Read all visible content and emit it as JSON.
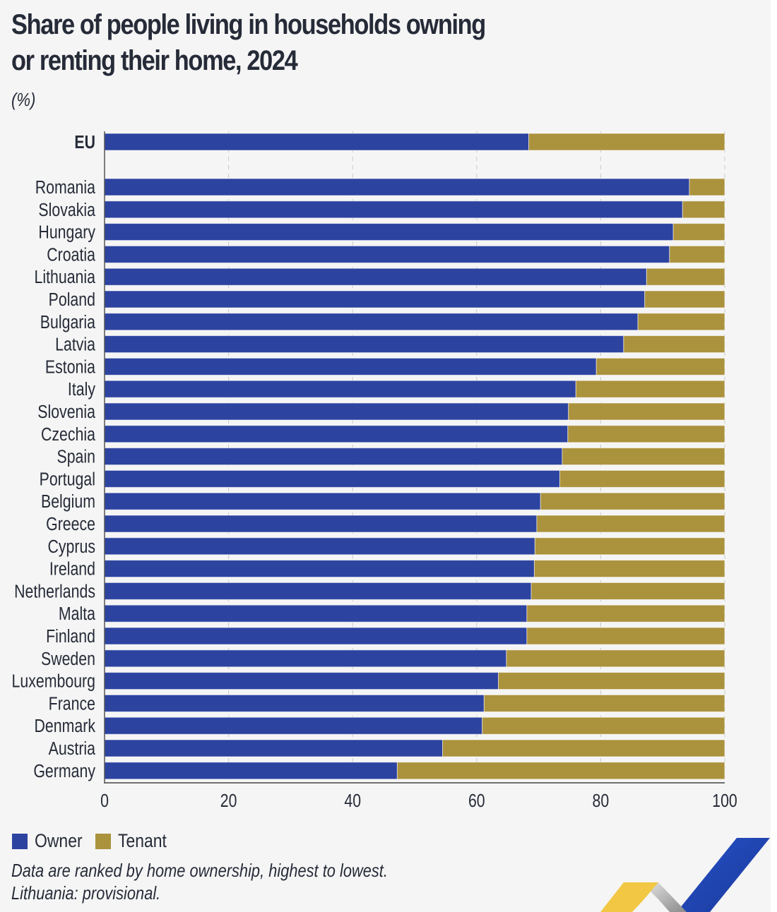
{
  "colors": {
    "owner": "#2d43a0",
    "tenant": "#ab923c",
    "panel_background": "#f5f5f5",
    "text": "#262b38",
    "grid": "#c9c9c9"
  },
  "title_lines": [
    "Share of people living in households owning",
    "or renting their home, 2024"
  ],
  "unit": "(%)",
  "legend": [
    {
      "label": "Owner",
      "color": "#2d43a0"
    },
    {
      "label": "Tenant",
      "color": "#ab923c"
    }
  ],
  "notes": [
    "Data are ranked by home ownership, highest to lowest.",
    "Lithuania: provisional."
  ],
  "logo": "eurostat-ribbon-logo",
  "chart_data": {
    "type": "bar",
    "orientation": "horizontal",
    "stacked": true,
    "title": "Share of people living in households owning or renting their home, 2024",
    "xlabel": "",
    "ylabel": "",
    "unit": "%",
    "xlim": [
      0,
      100
    ],
    "xticks": [
      0,
      20,
      40,
      60,
      80,
      100
    ],
    "xtick_labels": [
      "0",
      "20",
      "40",
      "60",
      "80",
      "100"
    ],
    "grid": "vertical dashed",
    "legend_position": "bottom-left",
    "categories": [
      "EU",
      "Romania",
      "Slovakia",
      "Hungary",
      "Croatia",
      "Lithuania",
      "Poland",
      "Bulgaria",
      "Latvia",
      "Estonia",
      "Italy",
      "Slovenia",
      "Czechia",
      "Spain",
      "Portugal",
      "Belgium",
      "Greece",
      "Cyprus",
      "Ireland",
      "Netherlands",
      "Malta",
      "Finland",
      "Sweden",
      "Luxembourg",
      "France",
      "Denmark",
      "Austria",
      "Germany"
    ],
    "bold_categories": [
      "EU"
    ],
    "gap_after": [
      "EU"
    ],
    "series": [
      {
        "name": "Owner",
        "color": "#2d43a0",
        "values": [
          68.4,
          94.3,
          93.2,
          91.7,
          91.1,
          87.4,
          87.1,
          86.0,
          83.7,
          79.3,
          76.0,
          74.8,
          74.7,
          73.8,
          73.4,
          70.3,
          69.7,
          69.4,
          69.3,
          68.8,
          68.1,
          68.1,
          64.8,
          63.5,
          61.2,
          60.9,
          54.5,
          47.2
        ]
      },
      {
        "name": "Tenant",
        "color": "#ab923c",
        "values": [
          31.6,
          5.7,
          6.8,
          8.3,
          8.9,
          12.6,
          12.9,
          14.0,
          16.3,
          20.7,
          24.0,
          25.2,
          25.3,
          26.2,
          26.6,
          29.7,
          30.3,
          30.6,
          30.7,
          31.2,
          31.9,
          31.9,
          35.2,
          36.5,
          38.8,
          39.1,
          45.5,
          52.8
        ]
      }
    ]
  }
}
